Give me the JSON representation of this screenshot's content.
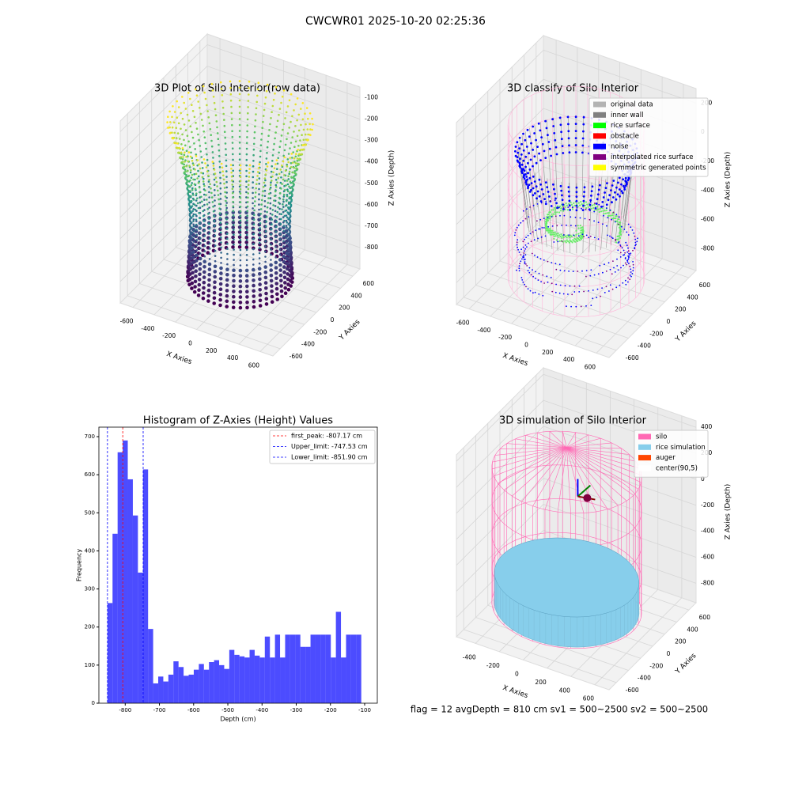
{
  "title": "CWCWR01 2025-10-20 02:25:36",
  "footer": "flag = 12   avgDepth = 810 cm  sv1 = 500~2500  sv2 = 500~2500",
  "chart_data": [
    {
      "type": "scatter3d",
      "title": "3D Plot of Silo Interior(row data)",
      "style": "raw",
      "xlabel": "X Axies",
      "ylabel": "Y Axies",
      "zlabel": "Z Axies (Depth)",
      "xlim": [
        -720,
        720
      ],
      "ylim": [
        -720,
        720
      ],
      "zlim": [
        -900,
        -50
      ],
      "xticks": [
        -600,
        -400,
        -200,
        0,
        200,
        400,
        600
      ],
      "yticks": [
        -600,
        -400,
        -200,
        0,
        200,
        400,
        600
      ],
      "zticks": [
        -800,
        -700,
        -600,
        -500,
        -400,
        -300,
        -200,
        -100
      ]
    },
    {
      "type": "scatter3d",
      "title": "3D classify of Silo Interior",
      "style": "classify",
      "xlabel": "X Axies",
      "ylabel": "Y Axies",
      "zlabel": "Z Axies (Depth)",
      "xlim": [
        -720,
        720
      ],
      "ylim": [
        -720,
        720
      ],
      "zlim": [
        -950,
        300
      ],
      "xticks": [
        -600,
        -400,
        -200,
        0,
        200,
        400,
        600
      ],
      "yticks": [
        -600,
        -400,
        -200,
        0,
        200,
        400,
        600
      ],
      "zticks": [
        -800,
        -600,
        -400,
        -200,
        0,
        200
      ],
      "legend": [
        {
          "name": "original data",
          "color": "#b3b3b3"
        },
        {
          "name": "inner wall",
          "color": "#808080"
        },
        {
          "name": "rice surface",
          "color": "#00ff00"
        },
        {
          "name": "obstacle",
          "color": "#ff0000"
        },
        {
          "name": "noise",
          "color": "#0000ff"
        },
        {
          "name": "interpolated rice surface",
          "color": "#800080"
        },
        {
          "name": "symmetric generated points",
          "color": "#ffff00"
        }
      ]
    },
    {
      "type": "histogram",
      "title": "Histogram of Z-Axies (Height) Values",
      "xlabel": "Depth (cm)",
      "ylabel": "Frequency",
      "color": "#0000ff",
      "bins": [
        -851.9,
        -837.06,
        -822.22,
        -807.38,
        -792.54,
        -777.7,
        -762.86,
        -748.02,
        -733.18,
        -718.34,
        -703.5,
        -688.66,
        -673.82,
        -658.98,
        -644.14,
        -629.3,
        -614.46,
        -599.62,
        -584.78,
        -569.94,
        -555.1,
        -540.26,
        -525.42,
        -510.58,
        -495.74,
        -480.9,
        -466.06,
        -451.22,
        -436.38,
        -421.54,
        -406.7,
        -391.86,
        -377.02,
        -362.18,
        -347.34,
        -332.5,
        -317.66,
        -302.82,
        -287.98,
        -273.14,
        -258.3,
        -243.46,
        -228.62,
        -213.78,
        -198.94,
        -184.1,
        -169.26,
        -154.42,
        -139.58,
        -124.74,
        -109.9
      ],
      "values": [
        263,
        445,
        659,
        690,
        588,
        493,
        343,
        614,
        195,
        52,
        70,
        57,
        75,
        110,
        95,
        72,
        75,
        88,
        103,
        88,
        108,
        113,
        100,
        90,
        140,
        127,
        123,
        120,
        140,
        125,
        120,
        175,
        120,
        180,
        120,
        180,
        180,
        180,
        148,
        148,
        180,
        180,
        180,
        180,
        120,
        240,
        120,
        180,
        180,
        180
      ],
      "xlim": [
        -877,
        -63
      ],
      "ylim": [
        0,
        725
      ],
      "xticks": [
        -800,
        -700,
        -600,
        -500,
        -400,
        -300,
        -200,
        -100
      ],
      "yticks": [
        0,
        100,
        200,
        300,
        400,
        500,
        600,
        700
      ],
      "vlines": [
        {
          "label": "first_peak: -807.17 cm",
          "value": -807.17,
          "color": "#ff0000"
        },
        {
          "label": "Upper_limit: -747.53 cm",
          "value": -747.53,
          "color": "#0000ff"
        },
        {
          "label": "Lower_limit: -851.90 cm",
          "value": -851.9,
          "color": "#0000ff"
        }
      ]
    },
    {
      "type": "scatter3d",
      "title": "3D simulation of Silo Interior",
      "style": "simulation",
      "xlabel": "X Axies",
      "ylabel": "Y Axies",
      "zlabel": "Z Axies (Depth)",
      "xlim": [
        -560,
        720
      ],
      "ylim": [
        -720,
        720
      ],
      "zlim": [
        -950,
        450
      ],
      "xticks": [
        -400,
        -200,
        0,
        200,
        400,
        600
      ],
      "yticks": [
        -600,
        -400,
        -200,
        0,
        200,
        400,
        600
      ],
      "zticks": [
        -800,
        -600,
        -400,
        -200,
        0,
        200,
        400
      ],
      "legend": [
        {
          "name": "silo",
          "color": "#ff69b4"
        },
        {
          "name": "rice simulation",
          "color": "#87ceeb"
        },
        {
          "name": "auger",
          "color": "#ff4500"
        },
        {
          "name": "center(90,5)",
          "color": "#ffffff"
        }
      ]
    }
  ]
}
